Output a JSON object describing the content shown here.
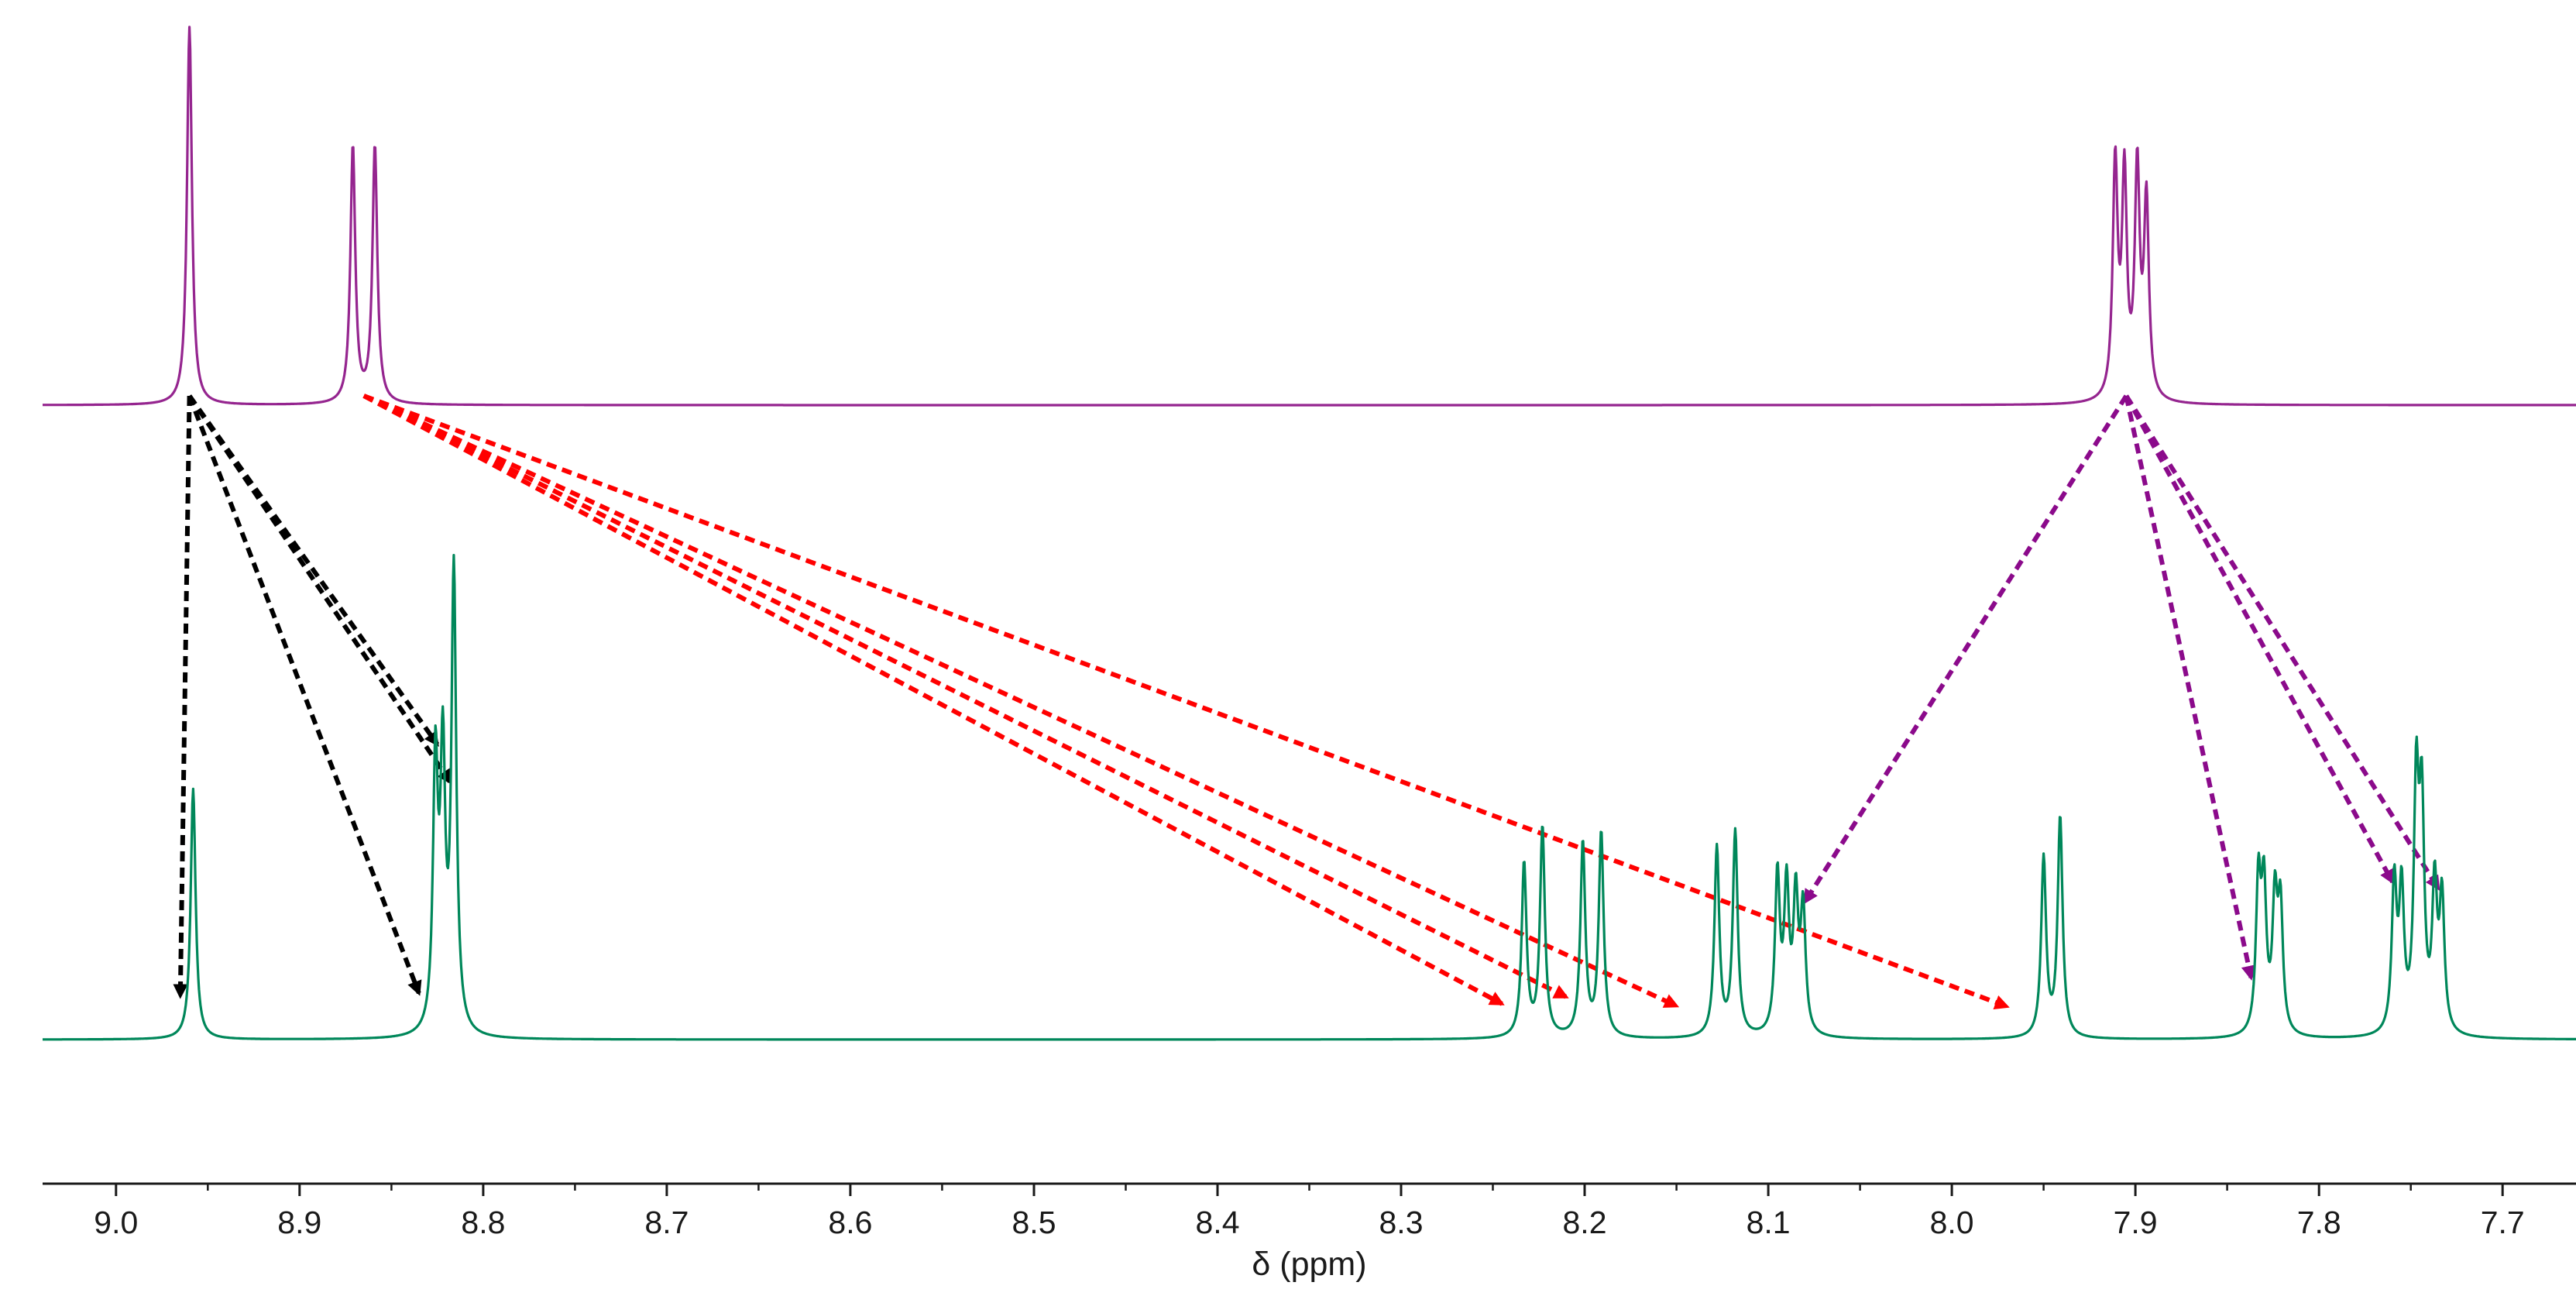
{
  "chart_data": {
    "type": "line",
    "title": "",
    "xlabel": "δ (ppm)",
    "ylabel": "",
    "x_reversed": true,
    "xlim": [
      9.04,
      7.66
    ],
    "xticks": [
      9.0,
      8.9,
      8.8,
      8.7,
      8.6,
      8.5,
      8.4,
      8.3,
      8.2,
      8.1,
      8.0,
      7.9,
      7.8,
      7.7
    ],
    "xtick_labels": [
      "9.0",
      "8.9",
      "8.8",
      "8.7",
      "8.6",
      "8.5",
      "8.4",
      "8.3",
      "8.2",
      "8.1",
      "8.0",
      "7.9",
      "7.8",
      "7.7"
    ],
    "grid": false,
    "legend": "none",
    "series": [
      {
        "name": "top spectrum",
        "color": "#95258f",
        "peaks": [
          {
            "ppm": 8.96,
            "height": 1.0
          },
          {
            "ppm": 8.871,
            "height": 0.68
          },
          {
            "ppm": 8.859,
            "height": 0.68
          },
          {
            "ppm": 7.911,
            "height": 0.62
          },
          {
            "ppm": 7.906,
            "height": 0.58
          },
          {
            "ppm": 7.899,
            "height": 0.6
          },
          {
            "ppm": 7.894,
            "height": 0.52
          }
        ]
      },
      {
        "name": "bottom spectrum",
        "color": "#00875a",
        "peaks": [
          {
            "ppm": 8.958,
            "height": 0.49
          },
          {
            "ppm": 8.826,
            "height": 0.52
          },
          {
            "ppm": 8.822,
            "height": 0.52
          },
          {
            "ppm": 8.816,
            "height": 0.9
          },
          {
            "ppm": 8.233,
            "height": 0.34
          },
          {
            "ppm": 8.223,
            "height": 0.41
          },
          {
            "ppm": 8.201,
            "height": 0.38
          },
          {
            "ppm": 8.191,
            "height": 0.4
          },
          {
            "ppm": 8.128,
            "height": 0.37
          },
          {
            "ppm": 8.118,
            "height": 0.4
          },
          {
            "ppm": 8.095,
            "height": 0.31
          },
          {
            "ppm": 8.09,
            "height": 0.28
          },
          {
            "ppm": 8.085,
            "height": 0.26
          },
          {
            "ppm": 8.081,
            "height": 0.24
          },
          {
            "ppm": 7.95,
            "height": 0.35
          },
          {
            "ppm": 7.941,
            "height": 0.43
          },
          {
            "ppm": 7.833,
            "height": 0.29
          },
          {
            "ppm": 7.83,
            "height": 0.27
          },
          {
            "ppm": 7.824,
            "height": 0.25
          },
          {
            "ppm": 7.821,
            "height": 0.24
          },
          {
            "ppm": 7.759,
            "height": 0.29
          },
          {
            "ppm": 7.755,
            "height": 0.27
          },
          {
            "ppm": 7.747,
            "height": 0.47
          },
          {
            "ppm": 7.744,
            "height": 0.42
          },
          {
            "ppm": 7.737,
            "height": 0.28
          },
          {
            "ppm": 7.733,
            "height": 0.26
          }
        ]
      }
    ],
    "annotations": [
      {
        "type": "dashed-arrow",
        "color": "#000000",
        "from_ppm": 8.96,
        "from_spectrum": "top spectrum",
        "to_ppm": 8.965
      },
      {
        "type": "dashed-arrow",
        "color": "#000000",
        "from_ppm": 8.96,
        "from_spectrum": "top spectrum",
        "to_ppm": 8.835
      },
      {
        "type": "dashed-arrow",
        "color": "#000000",
        "from_ppm": 8.96,
        "from_spectrum": "top spectrum",
        "to_ppm": 8.825
      },
      {
        "type": "dashed-arrow",
        "color": "#000000",
        "from_ppm": 8.96,
        "from_spectrum": "top spectrum",
        "to_ppm": 8.818
      },
      {
        "type": "dashed-arrow",
        "color": "#ff0000",
        "from_ppm": 8.865,
        "from_spectrum": "top spectrum",
        "to_ppm": 8.245
      },
      {
        "type": "dashed-arrow",
        "color": "#ff0000",
        "from_ppm": 8.865,
        "from_spectrum": "top spectrum",
        "to_ppm": 8.21
      },
      {
        "type": "dashed-arrow",
        "color": "#ff0000",
        "from_ppm": 8.865,
        "from_spectrum": "top spectrum",
        "to_ppm": 8.15
      },
      {
        "type": "dashed-arrow",
        "color": "#ff0000",
        "from_ppm": 8.865,
        "from_spectrum": "top spectrum",
        "to_ppm": 7.97
      },
      {
        "type": "dashed-arrow",
        "color": "#8b0a8b",
        "from_ppm": 7.905,
        "from_spectrum": "top spectrum",
        "to_ppm": 8.08
      },
      {
        "type": "dashed-arrow",
        "color": "#8b0a8b",
        "from_ppm": 7.905,
        "from_spectrum": "top spectrum",
        "to_ppm": 7.837
      },
      {
        "type": "dashed-arrow",
        "color": "#8b0a8b",
        "from_ppm": 7.905,
        "from_spectrum": "top spectrum",
        "to_ppm": 7.76
      },
      {
        "type": "dashed-arrow",
        "color": "#8b0a8b",
        "from_ppm": 7.905,
        "from_spectrum": "top spectrum",
        "to_ppm": 7.735
      }
    ]
  }
}
